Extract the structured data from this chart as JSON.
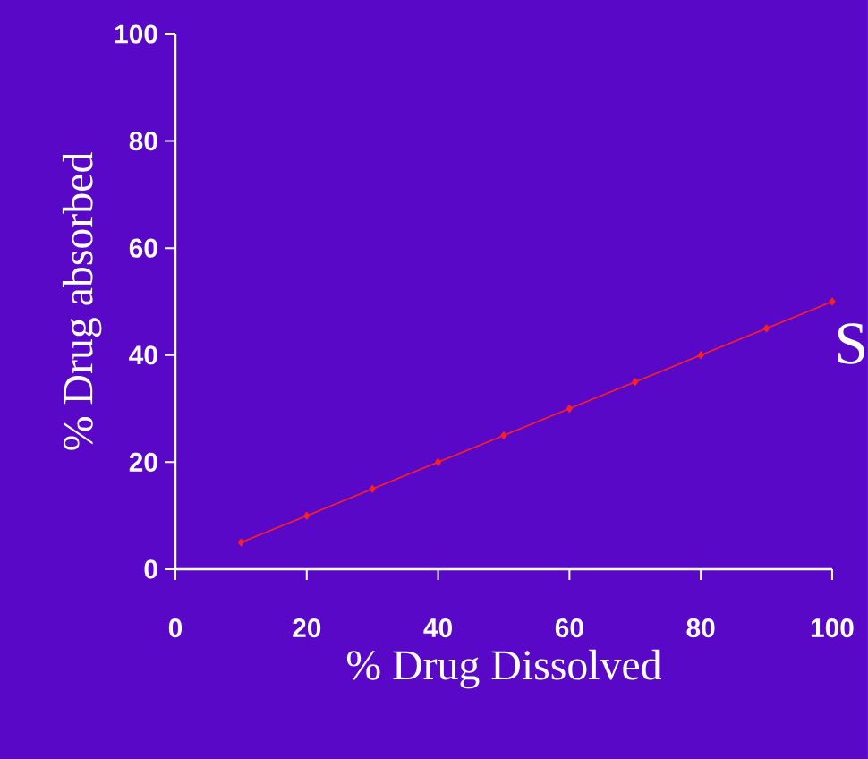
{
  "chart_data": {
    "type": "line",
    "xlabel": "% Drug Dissolved",
    "ylabel": "% Drug absorbed",
    "x": [
      10,
      20,
      30,
      40,
      50,
      60,
      70,
      80,
      90,
      100
    ],
    "series": [
      {
        "color": "#ff2020",
        "values": [
          5,
          10,
          15,
          20,
          25,
          30,
          35,
          40,
          45,
          50
        ]
      }
    ],
    "xlim": [
      0,
      100
    ],
    "ylim": [
      0,
      100
    ],
    "xticks": [
      0,
      20,
      40,
      60,
      80,
      100
    ],
    "yticks": [
      0,
      20,
      40,
      60,
      80,
      100
    ],
    "marker": "diamond",
    "line_style": "solid",
    "annotations": [
      "S"
    ]
  }
}
